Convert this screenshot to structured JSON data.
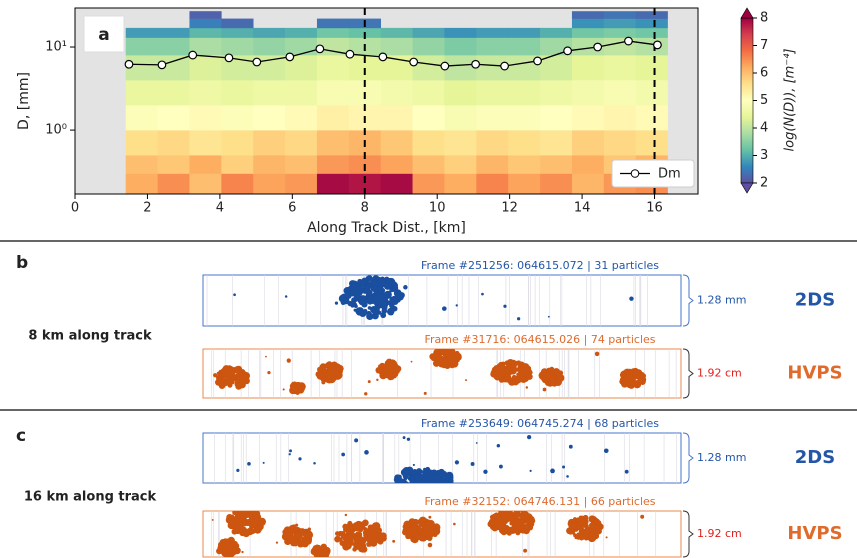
{
  "chart_data": {
    "type": "heatmap",
    "panel_label": "a",
    "xlabel": "Along Track Dist., [km]",
    "ylabel": "D, [mm]",
    "xlim": [
      0,
      17.2
    ],
    "xticks": [
      0,
      2,
      4,
      6,
      8,
      10,
      12,
      14,
      16
    ],
    "ylim": [
      0.17,
      29.5
    ],
    "log_y": true,
    "yticks": [
      {
        "value": 1,
        "label": "10⁰"
      },
      {
        "value": 10,
        "label": "10¹"
      }
    ],
    "vlines": [
      8,
      16
    ],
    "heatmap": {
      "x_edges": [
        1.4,
        2.28,
        3.16,
        4.04,
        4.92,
        5.8,
        6.68,
        7.56,
        8.44,
        9.32,
        10.2,
        11.08,
        11.96,
        12.84,
        13.72,
        14.6,
        15.48,
        16.36
      ],
      "y_edges": [
        0.17,
        0.3,
        0.5,
        1,
        2,
        4,
        8,
        13,
        17,
        22,
        27
      ],
      "values": [
        [
          6.2,
          6.5,
          6.0,
          6.6,
          6.3,
          6.4,
          7.9,
          7.8,
          7.9,
          6.4,
          6.2,
          6.6,
          6.3,
          6.5,
          6.1,
          6.4,
          6.5
        ],
        [
          6.0,
          5.9,
          6.2,
          5.8,
          6.1,
          6.0,
          6.4,
          6.5,
          6.3,
          6.0,
          5.8,
          6.1,
          5.9,
          6.0,
          6.2,
          5.9,
          6.1
        ],
        [
          5.6,
          5.7,
          5.5,
          5.6,
          5.8,
          5.7,
          6.0,
          6.1,
          5.9,
          5.6,
          5.5,
          5.7,
          5.6,
          5.5,
          5.8,
          5.7,
          5.6
        ],
        [
          4.9,
          5.0,
          5.1,
          4.9,
          5.0,
          5.1,
          5.3,
          5.2,
          5.2,
          5.0,
          4.8,
          4.9,
          4.9,
          5.0,
          5.1,
          5.2,
          5.1
        ],
        [
          4.5,
          4.5,
          4.6,
          4.5,
          4.6,
          4.6,
          4.8,
          4.8,
          4.7,
          4.6,
          4.4,
          4.5,
          4.5,
          4.6,
          4.7,
          4.8,
          4.7
        ],
        [
          4.1,
          4.1,
          4.3,
          4.2,
          4.2,
          4.3,
          4.5,
          4.4,
          4.4,
          4.2,
          4.0,
          4.1,
          4.1,
          4.2,
          4.4,
          4.5,
          4.4
        ],
        [
          3.5,
          3.5,
          3.8,
          3.7,
          3.6,
          3.7,
          4.0,
          3.9,
          3.8,
          3.6,
          3.4,
          3.5,
          3.5,
          3.7,
          3.9,
          4.0,
          3.9
        ],
        [
          2.8,
          2.8,
          3.1,
          3.0,
          2.9,
          3.0,
          3.3,
          3.2,
          3.1,
          2.9,
          2.7,
          2.8,
          2.8,
          3.0,
          3.3,
          3.4,
          3.3
        ],
        [
          null,
          null,
          2.5,
          2.3,
          null,
          null,
          2.4,
          2.4,
          null,
          null,
          null,
          null,
          null,
          null,
          2.7,
          2.8,
          2.7
        ],
        [
          null,
          null,
          2.2,
          null,
          null,
          null,
          null,
          null,
          null,
          null,
          null,
          null,
          null,
          null,
          2.3,
          2.4,
          2.3
        ]
      ]
    },
    "colormap": [
      "#5e4fa2",
      "#3288bd",
      "#66c2a5",
      "#abdda4",
      "#e6f598",
      "#ffffbf",
      "#fee08b",
      "#fdae61",
      "#f46d43",
      "#d53e4f",
      "#9e0142"
    ],
    "clim": [
      2,
      8
    ],
    "cticks": [
      2,
      3,
      4,
      5,
      6,
      7,
      8
    ],
    "colorbar_label": "log(N(D)), [m⁻⁴]",
    "series": [
      {
        "name": "Dm",
        "color": "#000000",
        "x": [
          1.49,
          2.4,
          3.25,
          4.25,
          5.02,
          5.93,
          6.76,
          7.59,
          8.5,
          9.35,
          10.21,
          11.06,
          11.86,
          12.77,
          13.6,
          14.43,
          15.28,
          16.08
        ],
        "values": [
          6.2,
          6.1,
          8.0,
          7.4,
          6.6,
          7.6,
          9.5,
          8.2,
          7.6,
          6.6,
          5.9,
          6.2,
          5.9,
          6.8,
          9.0,
          10.0,
          11.8,
          10.6
        ]
      }
    ],
    "legend": "lower right"
  },
  "panels": [
    {
      "letter": "b",
      "location": "8 km along track",
      "probes": [
        {
          "name": "2DS",
          "frame": "Frame #251256: 064615.072 | 31 particles",
          "scale": "1.28 mm"
        },
        {
          "name": "HVPS",
          "frame": "Frame #31716: 064615.026 | 74 particles",
          "scale": "1.92 cm"
        }
      ]
    },
    {
      "letter": "c",
      "location": "16 km along track",
      "probes": [
        {
          "name": "2DS",
          "frame": "Frame #253649: 064745.274 | 68 particles",
          "scale": "1.28 mm"
        },
        {
          "name": "HVPS",
          "frame": "Frame #32152: 064746.131 | 66 particles",
          "scale": "1.92 cm"
        }
      ]
    }
  ]
}
